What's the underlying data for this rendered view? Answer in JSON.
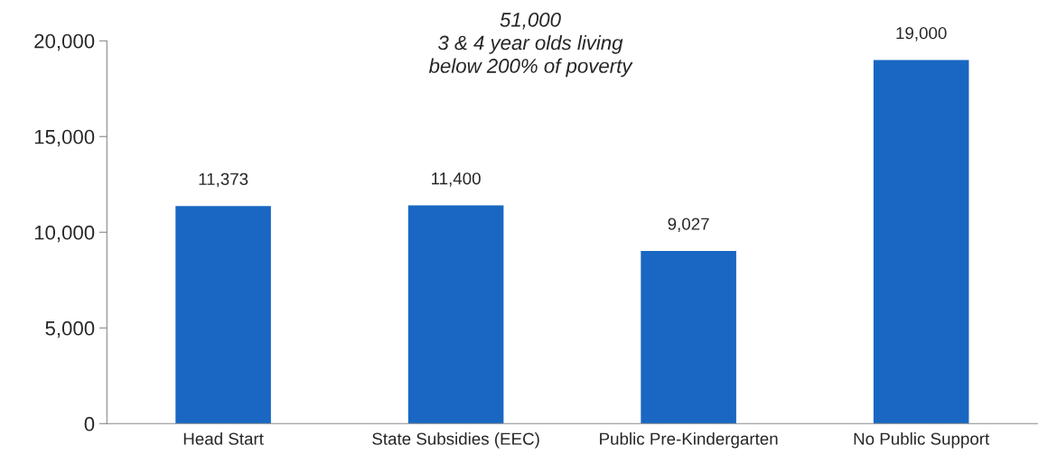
{
  "chart_data": {
    "type": "bar",
    "categories": [
      "Head Start",
      "State Subsidies (EEC)",
      "Public Pre-Kindergarten",
      "No Public Support"
    ],
    "values": [
      11373,
      11400,
      9027,
      19000
    ],
    "color": "#1967c2",
    "ylim": [
      0,
      20000
    ],
    "yticks": [
      {
        "value": 0,
        "label": "0"
      },
      {
        "value": 5000,
        "label": "5,000"
      },
      {
        "value": 10000,
        "label": "10,000"
      },
      {
        "value": 15000,
        "label": "15,000"
      },
      {
        "value": 20000,
        "label": "20,000"
      }
    ],
    "value_labels": [
      "11,373",
      "11,400",
      "9,027",
      "19,000"
    ],
    "grid": false,
    "legend": false,
    "annotations": [
      "51,000\n3 & 4 year olds living\nbelow 200% of poverty"
    ]
  }
}
